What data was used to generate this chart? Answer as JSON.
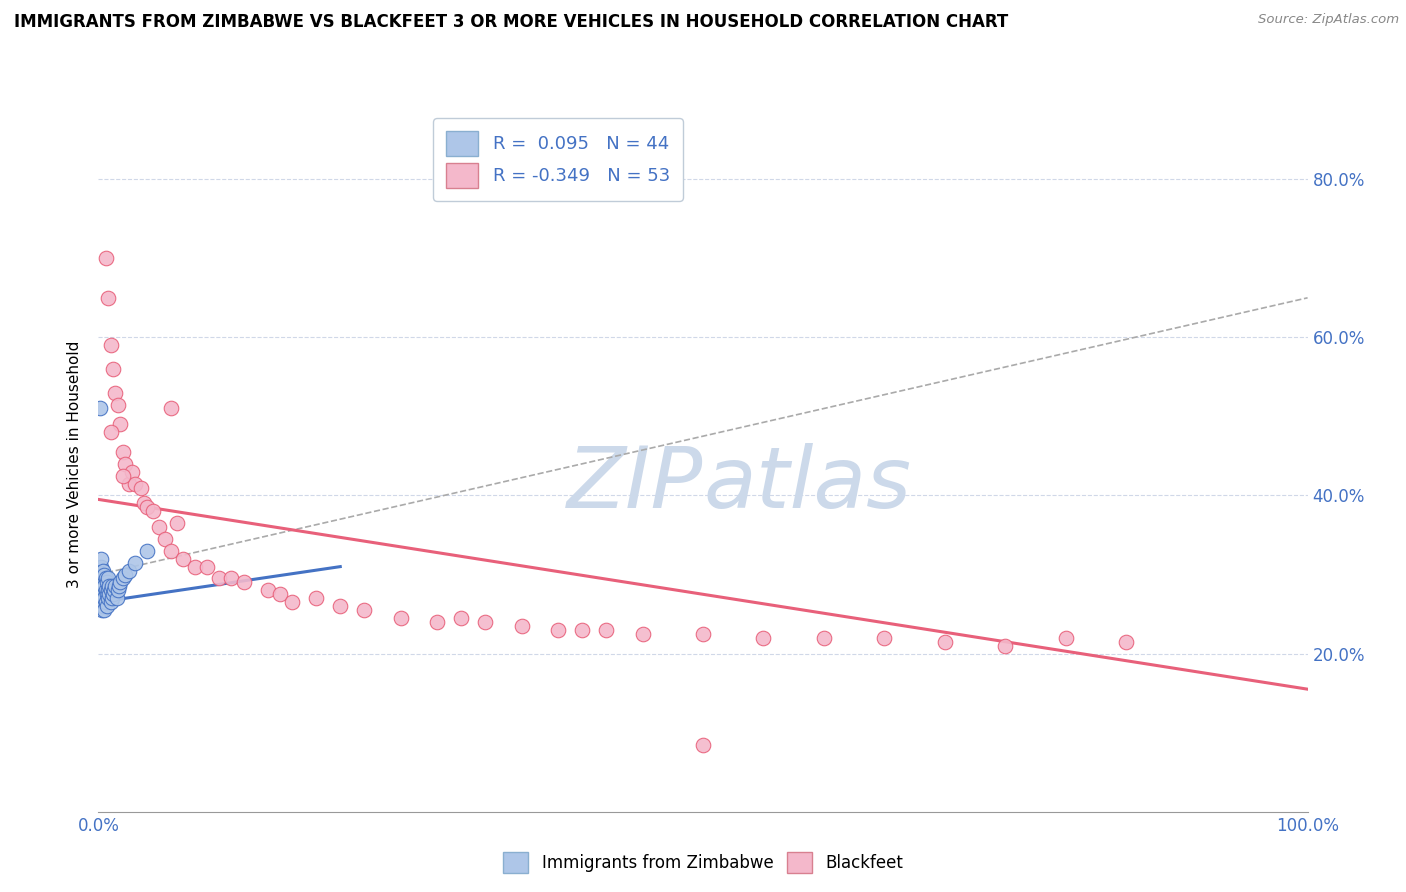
{
  "title": "IMMIGRANTS FROM ZIMBABWE VS BLACKFEET 3 OR MORE VEHICLES IN HOUSEHOLD CORRELATION CHART",
  "source": "Source: ZipAtlas.com",
  "ylabel": "3 or more Vehicles in Household",
  "legend_label1": "Immigrants from Zimbabwe",
  "legend_label2": "Blackfeet",
  "color_blue": "#aec6e8",
  "color_pink": "#f4b8cb",
  "color_blue_line": "#4472c4",
  "color_pink_line": "#e8607a",
  "color_blue_text": "#4472c4",
  "color_watermark": "#ccd9ea",
  "color_grid": "#d0d8e8",
  "blue_x": [
    0.001,
    0.002,
    0.002,
    0.002,
    0.003,
    0.003,
    0.003,
    0.003,
    0.004,
    0.004,
    0.004,
    0.004,
    0.005,
    0.005,
    0.005,
    0.005,
    0.006,
    0.006,
    0.006,
    0.007,
    0.007,
    0.007,
    0.008,
    0.008,
    0.008,
    0.009,
    0.009,
    0.01,
    0.01,
    0.011,
    0.011,
    0.012,
    0.013,
    0.014,
    0.015,
    0.016,
    0.017,
    0.018,
    0.02,
    0.022,
    0.025,
    0.03,
    0.04,
    0.001
  ],
  "blue_y": [
    0.28,
    0.295,
    0.31,
    0.32,
    0.255,
    0.27,
    0.285,
    0.3,
    0.26,
    0.275,
    0.29,
    0.305,
    0.255,
    0.27,
    0.285,
    0.3,
    0.265,
    0.28,
    0.295,
    0.26,
    0.275,
    0.29,
    0.27,
    0.28,
    0.295,
    0.275,
    0.285,
    0.265,
    0.28,
    0.27,
    0.285,
    0.275,
    0.28,
    0.285,
    0.27,
    0.28,
    0.285,
    0.29,
    0.295,
    0.3,
    0.305,
    0.315,
    0.33,
    0.51
  ],
  "pink_x": [
    0.006,
    0.008,
    0.01,
    0.012,
    0.014,
    0.016,
    0.018,
    0.02,
    0.022,
    0.025,
    0.028,
    0.03,
    0.035,
    0.038,
    0.04,
    0.045,
    0.05,
    0.055,
    0.06,
    0.065,
    0.07,
    0.08,
    0.09,
    0.1,
    0.11,
    0.12,
    0.14,
    0.15,
    0.16,
    0.18,
    0.2,
    0.22,
    0.25,
    0.28,
    0.3,
    0.32,
    0.35,
    0.38,
    0.4,
    0.42,
    0.45,
    0.5,
    0.55,
    0.6,
    0.65,
    0.7,
    0.75,
    0.8,
    0.85,
    0.01,
    0.02,
    0.06,
    0.5
  ],
  "pink_y": [
    0.7,
    0.65,
    0.59,
    0.56,
    0.53,
    0.515,
    0.49,
    0.455,
    0.44,
    0.415,
    0.43,
    0.415,
    0.41,
    0.39,
    0.385,
    0.38,
    0.36,
    0.345,
    0.33,
    0.365,
    0.32,
    0.31,
    0.31,
    0.295,
    0.295,
    0.29,
    0.28,
    0.275,
    0.265,
    0.27,
    0.26,
    0.255,
    0.245,
    0.24,
    0.245,
    0.24,
    0.235,
    0.23,
    0.23,
    0.23,
    0.225,
    0.225,
    0.22,
    0.22,
    0.22,
    0.215,
    0.21,
    0.22,
    0.215,
    0.48,
    0.425,
    0.51,
    0.085
  ],
  "xlim": [
    0.0,
    1.0
  ],
  "ylim": [
    0.0,
    0.88
  ],
  "blue_line_x": [
    0.0,
    0.2
  ],
  "blue_line_y": [
    0.265,
    0.31
  ],
  "pink_line_x": [
    0.0,
    1.0
  ],
  "pink_line_y": [
    0.395,
    0.155
  ],
  "gray_dash_line_x": [
    0.0,
    1.0
  ],
  "gray_dash_line_y": [
    0.3,
    0.65
  ]
}
